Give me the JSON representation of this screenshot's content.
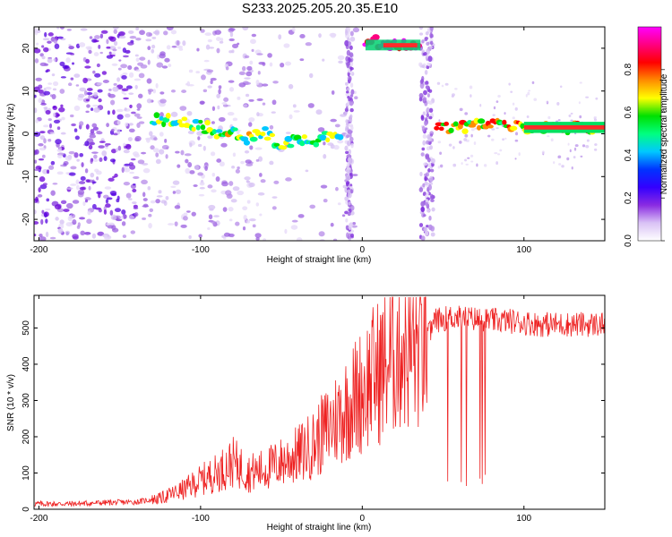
{
  "title": "S233.2025.205.20.35.E10",
  "chart_data": [
    {
      "type": "heatmap",
      "xlabel": "Height of straight line (km)",
      "ylabel": "Frequency (Hz)",
      "xlim": [
        -203,
        150
      ],
      "ylim": [
        -25,
        25
      ],
      "xticks": [
        -200,
        -100,
        0,
        100
      ],
      "yticks": [
        -20,
        -10,
        0,
        10,
        20
      ],
      "colorbar": {
        "label": "Normalized spectral amplitude",
        "ticks": [
          "0.0",
          "0.2",
          "0.4",
          "0.6",
          "0.8"
        ],
        "tick_values": [
          0,
          0.2,
          0.4,
          0.6,
          0.8
        ],
        "range": [
          0,
          1
        ],
        "colors": [
          "#ffffff",
          "#d9c2f5",
          "#8a2be2",
          "#3300ff",
          "#0033ff",
          "#00c8ff",
          "#00ff80",
          "#00e000",
          "#ffff00",
          "#ff8c00",
          "#ff0000",
          "#ff0080",
          "#ff00ff"
        ]
      },
      "ridge": {
        "x": [
          -130,
          -120,
          -110,
          -100,
          -90,
          -80,
          -70,
          -60,
          -50,
          -40,
          -30,
          -20,
          -12,
          2,
          10,
          20,
          30,
          36,
          46,
          55,
          65,
          75,
          85,
          95,
          105,
          115,
          130,
          150
        ],
        "y": [
          3,
          3.5,
          2.5,
          2,
          0.5,
          0,
          -1,
          0,
          -3,
          -1,
          -2,
          0,
          0.5,
          21,
          21.5,
          21,
          20.5,
          20.5,
          1.5,
          1.5,
          1.5,
          2,
          2.5,
          1.5,
          1.5,
          1.5,
          1.5,
          1.5
        ]
      }
    },
    {
      "type": "line",
      "xlabel": "Height of straight line (km)",
      "ylabel": "SNR (10 * v/v)",
      "xlim": [
        -203,
        150
      ],
      "ylim": [
        0,
        590
      ],
      "xticks": [
        -200,
        -100,
        0,
        100
      ],
      "yticks": [
        0,
        100,
        200,
        300,
        400,
        500
      ],
      "color": "#ee2222",
      "series": [
        {
          "x": [
            -203,
            -180,
            -160,
            -140,
            -125,
            -110,
            -100,
            -90,
            -80,
            -70,
            -60,
            -50,
            -40,
            -30,
            -20,
            -10,
            0,
            5,
            15,
            25,
            30,
            35,
            40,
            45,
            55,
            70,
            80,
            90,
            100,
            110,
            120,
            130,
            140,
            150
          ],
          "values": [
            15,
            15,
            18,
            20,
            30,
            55,
            80,
            100,
            130,
            100,
            110,
            130,
            150,
            180,
            230,
            280,
            330,
            360,
            400,
            460,
            440,
            450,
            470,
            520,
            530,
            525,
            520,
            520,
            515,
            510,
            510,
            510,
            510,
            510
          ]
        }
      ]
    }
  ]
}
